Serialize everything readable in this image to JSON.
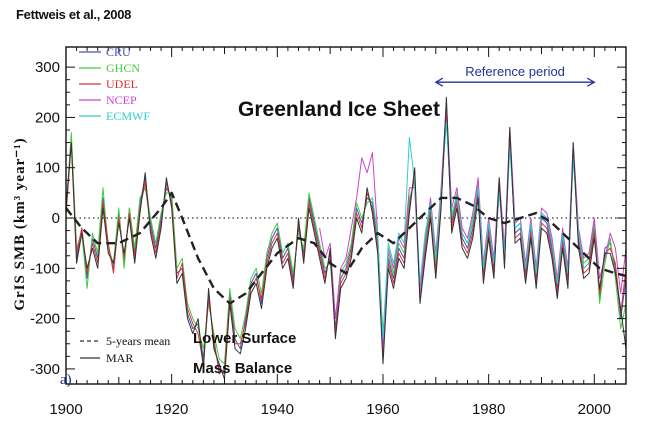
{
  "citation": "Fettweis et al., 2008",
  "chart_data": {
    "type": "line",
    "title": "Greenland Ice Sheet",
    "ylabel": "GrIS SMB (km³ year⁻¹)",
    "xlabel": "",
    "xlim": [
      1900,
      2006
    ],
    "ylim": [
      -330,
      340
    ],
    "x_ticks": [
      1900,
      1920,
      1940,
      1960,
      1980,
      2000
    ],
    "x_tick_labels": [
      "1900",
      "1920",
      "1940",
      "1960",
      "1980",
      "2000"
    ],
    "y_ticks": [
      300,
      200,
      100,
      0,
      -100,
      -200,
      -300
    ],
    "y_tick_labels": [
      "300",
      "200",
      "100",
      "0",
      "-100",
      "-200",
      "-300"
    ],
    "zero_line": "dotted",
    "legend_top": [
      {
        "name": "CRU",
        "color": "#4a4fb8"
      },
      {
        "name": "GHCN",
        "color": "#44cc44"
      },
      {
        "name": "UDEL",
        "color": "#dd3333"
      },
      {
        "name": "NCEP",
        "color": "#cc44cc"
      },
      {
        "name": "ECMWF",
        "color": "#33cccc"
      }
    ],
    "legend_bottom": [
      {
        "name": "5-years mean",
        "style": "dashed",
        "color": "#333333"
      },
      {
        "name": "MAR",
        "style": "solid",
        "color": "#333333"
      }
    ],
    "annotations": {
      "reference_period": {
        "label": "Reference period",
        "x_start": 1970,
        "x_end": 2000,
        "y": 270
      },
      "note_line1": "Lower Surface",
      "note_line2": "Mass Balance",
      "panel_label": "a)"
    },
    "series": [
      {
        "name": "CRU",
        "color": "#4a4fb8",
        "x_start": 1900,
        "values": [
          10,
          160,
          -80,
          -20,
          -120,
          -40,
          -80,
          40,
          -60,
          -100,
          10,
          -90,
          20,
          -70,
          30,
          80,
          -10,
          -60,
          0,
          60,
          40,
          -110,
          -100,
          -190,
          -220,
          -210,
          -280,
          -150,
          -250,
          -300,
          -310,
          -150,
          -240,
          -260,
          -200,
          -130,
          -110,
          -170,
          -80,
          -40,
          -20,
          -80,
          -60,
          -120,
          -20,
          -70,
          40,
          -10,
          -60,
          -110,
          -80,
          -220,
          -120,
          -100,
          -60,
          20,
          -10,
          40,
          30,
          -50,
          -250,
          -80,
          -120,
          -60,
          -80,
          30,
          80,
          -150,
          -60,
          20,
          -100,
          40,
          220,
          -10,
          40,
          -40,
          -60,
          -20,
          60,
          -110,
          -20,
          -100,
          60,
          -80,
          160,
          -30,
          -20,
          -110,
          -20,
          -120,
          0,
          -10,
          -60,
          -140,
          -40,
          -120,
          130,
          -40,
          -100,
          -90,
          -20,
          -160,
          -60,
          -50,
          -100,
          -200,
          -120
        ],
        "draw": false
      },
      {
        "name": "GHCN",
        "color": "#44cc44",
        "x_start": 1900,
        "values": [
          15,
          170,
          -60,
          -30,
          -140,
          -30,
          -70,
          60,
          -60,
          -90,
          20,
          -100,
          20,
          -60,
          40,
          60,
          0,
          -50,
          10,
          50,
          50,
          -100,
          -80,
          -170,
          -200,
          -220,
          -260,
          -170,
          -230,
          -280,
          -290,
          -140,
          -220,
          -240,
          -190,
          -120,
          -100,
          -150,
          -70,
          -30,
          -10,
          -70,
          -50,
          -110,
          -30,
          -60,
          50,
          0,
          -50,
          -100,
          -90,
          -200,
          -110,
          -90,
          -50,
          30,
          0,
          30,
          40,
          -40,
          -230,
          -70,
          -110,
          -50,
          -70,
          40,
          70,
          -140,
          -50,
          30,
          -90,
          50,
          200,
          0,
          50,
          -30,
          -50,
          -10,
          70,
          -100,
          -10,
          -90,
          50,
          -70,
          150,
          -20,
          -10,
          -100,
          -10,
          -110,
          10,
          0,
          -50,
          -130,
          -30,
          -110,
          120,
          -30,
          -90,
          -80,
          -10,
          -170,
          -90,
          -40,
          -120,
          -220,
          -170
        ]
      },
      {
        "name": "UDEL",
        "color": "#dd3333",
        "x_start": 1900,
        "values": [
          5,
          150,
          -70,
          -20,
          -110,
          -50,
          -90,
          30,
          -50,
          -110,
          0,
          -80,
          10,
          -80,
          20,
          70,
          -20,
          -70,
          -10,
          70,
          30,
          -120,
          -90,
          -180,
          -210,
          -230,
          -290,
          -160,
          -240,
          -310,
          -300,
          -160,
          -250,
          -250,
          -210,
          -140,
          -120,
          -160,
          -90,
          -50,
          -30,
          -90,
          -70,
          -130,
          -10,
          -80,
          30,
          -20,
          -70,
          -120,
          -70,
          -230,
          -130,
          -110,
          -70,
          10,
          -20,
          50,
          20,
          -60,
          -280,
          -90,
          -130,
          -70,
          -90,
          20,
          90,
          -160,
          -70,
          10,
          -110,
          30,
          210,
          -20,
          30,
          -50,
          -70,
          -30,
          50,
          -120,
          -30,
          -110,
          70,
          -90,
          170,
          -40,
          -30,
          -120,
          -30,
          -130,
          -10,
          -20,
          -70,
          -150,
          -50,
          -130,
          140,
          -50,
          -110,
          -100,
          -30,
          -150,
          -70,
          -60,
          -90,
          -190,
          -100
        ]
      },
      {
        "name": "NCEP",
        "color": "#cc44cc",
        "x_start": 1948,
        "values": [
          -20,
          -80,
          -50,
          -200,
          -100,
          -80,
          -20,
          40,
          120,
          90,
          130,
          -30,
          -260,
          -60,
          -100,
          -40,
          -60,
          60,
          60,
          -160,
          -40,
          40,
          -70,
          60,
          230,
          20,
          60,
          -20,
          -40,
          10,
          80,
          -90,
          0,
          -80,
          80,
          -60,
          180,
          -10,
          0,
          -90,
          0,
          -100,
          20,
          10,
          -40,
          -120,
          -20,
          -100,
          150,
          -20,
          -80,
          -70,
          0,
          -120,
          -80,
          -30,
          -60,
          -150,
          -60
        ]
      },
      {
        "name": "ECMWF",
        "color": "#33cccc",
        "x_start": 1958,
        "values": [
          40,
          -30,
          -240,
          -50,
          -90,
          -30,
          -50,
          160,
          70,
          -130,
          -30,
          30,
          -80,
          50,
          190,
          10,
          40,
          -30,
          -50,
          0,
          60,
          -100,
          -10,
          -90,
          50,
          -70,
          140,
          -20,
          -10,
          -100,
          -10,
          -110,
          10,
          0,
          -50,
          -130,
          -30,
          -110,
          120,
          -30,
          -100,
          -90
        ]
      },
      {
        "name": "MAR",
        "color": "#333333",
        "x_start": 1900,
        "values": [
          20,
          150,
          -90,
          -30,
          -100,
          -60,
          -100,
          20,
          -70,
          -90,
          -10,
          -70,
          0,
          -90,
          10,
          90,
          -30,
          -80,
          -20,
          80,
          20,
          -130,
          -110,
          -200,
          -230,
          -200,
          -300,
          -140,
          -260,
          -290,
          -320,
          -170,
          -260,
          -270,
          -220,
          -150,
          -130,
          -180,
          -100,
          -60,
          -40,
          -100,
          -80,
          -140,
          0,
          -90,
          20,
          -30,
          -80,
          -130,
          -60,
          -240,
          -140,
          -120,
          -80,
          0,
          -30,
          60,
          10,
          -70,
          -290,
          -100,
          -140,
          -80,
          -100,
          10,
          100,
          -170,
          -80,
          0,
          -120,
          20,
          240,
          -30,
          20,
          -60,
          -80,
          -40,
          40,
          -130,
          -40,
          -120,
          80,
          -100,
          180,
          -50,
          -40,
          -130,
          -40,
          -140,
          -20,
          -30,
          -80,
          -160,
          -60,
          -140,
          150,
          -60,
          -120,
          -110,
          -40,
          -140,
          -70,
          -70,
          -110,
          -180,
          -260
        ]
      },
      {
        "name": "5-years mean",
        "color": "#222222",
        "dashed": true,
        "x": [
          1900,
          1903,
          1906,
          1910,
          1914,
          1918,
          1920,
          1922,
          1925,
          1928,
          1931,
          1934,
          1937,
          1940,
          1944,
          1947,
          1950,
          1953,
          1956,
          1959,
          1962,
          1965,
          1968,
          1971,
          1974,
          1977,
          1980,
          1983,
          1986,
          1989,
          1992,
          1995,
          1998,
          2001,
          2004,
          2006
        ],
        "values": [
          20,
          -20,
          -50,
          -50,
          -30,
          20,
          50,
          0,
          -80,
          -140,
          -170,
          -150,
          -110,
          -70,
          -40,
          -50,
          -90,
          -110,
          -60,
          -30,
          -50,
          -20,
          10,
          40,
          40,
          25,
          0,
          -10,
          0,
          10,
          -10,
          -40,
          -70,
          -100,
          -110,
          -115
        ]
      }
    ]
  }
}
